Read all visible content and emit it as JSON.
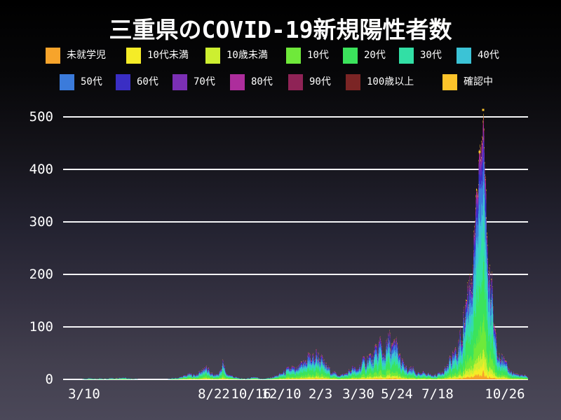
{
  "chart_data": {
    "type": "stacked-area",
    "title": "三重県のCOVID-19新規陽性者数",
    "legend_position": "top",
    "grid": "horizontal",
    "y_ticks": [
      0,
      100,
      200,
      300,
      400,
      500
    ],
    "ylim": [
      0,
      522
    ],
    "x_ticks": [
      {
        "label": "3/10",
        "dx": 30
      },
      {
        "label": "8/22",
        "dx": 215
      },
      {
        "label": "10/16",
        "dx": 268
      },
      {
        "label": "12/10",
        "dx": 311
      },
      {
        "label": "2/3",
        "dx": 367
      },
      {
        "label": "3/30",
        "dx": 421
      },
      {
        "label": "5/24",
        "dx": 476
      },
      {
        "label": "7/18",
        "dx": 534
      },
      {
        "label": "10/26",
        "dx": 630
      }
    ],
    "groups": [
      {
        "name": "未就学児",
        "color": "#F7A42B",
        "share": 0.02
      },
      {
        "name": "10代未満",
        "color": "#F5EC27",
        "share": 0.03
      },
      {
        "name": "10歳未満",
        "color": "#CDEF30",
        "share": 0.05
      },
      {
        "name": "10代",
        "color": "#6FE93A",
        "share": 0.11
      },
      {
        "name": "20代",
        "color": "#3BE35C",
        "share": 0.22
      },
      {
        "name": "30代",
        "color": "#32DFA5",
        "share": 0.16
      },
      {
        "name": "40代",
        "color": "#3BC3D6",
        "share": 0.14
      },
      {
        "name": "50代",
        "color": "#3B7BDB",
        "share": 0.12
      },
      {
        "name": "60代",
        "color": "#3A2EC4",
        "share": 0.07
      },
      {
        "name": "70代",
        "color": "#7B2FB4",
        "share": 0.04
      },
      {
        "name": "80代",
        "color": "#AD2D9C",
        "share": 0.025
      },
      {
        "name": "90代",
        "color": "#8F2356",
        "share": 0.012
      },
      {
        "name": "100歳以上",
        "color": "#7B2525",
        "share": 0.003
      },
      {
        "name": "確認中",
        "color": "#FBC32A",
        "share": 0.01
      }
    ],
    "totals": [
      [
        0,
        0
      ],
      [
        24,
        0
      ],
      [
        30,
        1
      ],
      [
        38,
        2
      ],
      [
        46,
        1
      ],
      [
        52,
        2
      ],
      [
        60,
        1
      ],
      [
        68,
        3
      ],
      [
        76,
        2
      ],
      [
        84,
        4
      ],
      [
        92,
        2
      ],
      [
        100,
        1
      ],
      [
        110,
        0
      ],
      [
        148,
        0
      ],
      [
        156,
        2
      ],
      [
        164,
        3
      ],
      [
        172,
        6
      ],
      [
        180,
        10
      ],
      [
        188,
        8
      ],
      [
        196,
        14
      ],
      [
        202,
        24
      ],
      [
        208,
        16
      ],
      [
        214,
        8
      ],
      [
        222,
        10
      ],
      [
        228,
        32
      ],
      [
        232,
        12
      ],
      [
        238,
        8
      ],
      [
        246,
        4
      ],
      [
        252,
        2
      ],
      [
        258,
        1
      ],
      [
        264,
        2
      ],
      [
        272,
        5
      ],
      [
        278,
        3
      ],
      [
        284,
        1
      ],
      [
        290,
        2
      ],
      [
        296,
        3
      ],
      [
        302,
        6
      ],
      [
        308,
        9
      ],
      [
        314,
        13
      ],
      [
        320,
        18
      ],
      [
        326,
        22
      ],
      [
        332,
        17
      ],
      [
        338,
        24
      ],
      [
        344,
        32
      ],
      [
        350,
        46
      ],
      [
        356,
        38
      ],
      [
        362,
        50
      ],
      [
        366,
        42
      ],
      [
        372,
        30
      ],
      [
        378,
        22
      ],
      [
        384,
        14
      ],
      [
        390,
        10
      ],
      [
        396,
        8
      ],
      [
        402,
        10
      ],
      [
        408,
        15
      ],
      [
        414,
        22
      ],
      [
        418,
        16
      ],
      [
        424,
        28
      ],
      [
        430,
        35
      ],
      [
        436,
        44
      ],
      [
        442,
        38
      ],
      [
        448,
        58
      ],
      [
        452,
        70
      ],
      [
        456,
        48
      ],
      [
        462,
        62
      ],
      [
        466,
        78
      ],
      [
        470,
        56
      ],
      [
        476,
        66
      ],
      [
        480,
        42
      ],
      [
        486,
        26
      ],
      [
        492,
        16
      ],
      [
        498,
        21
      ],
      [
        504,
        12
      ],
      [
        510,
        9
      ],
      [
        516,
        14
      ],
      [
        522,
        10
      ],
      [
        528,
        7
      ],
      [
        534,
        10
      ],
      [
        540,
        16
      ],
      [
        546,
        22
      ],
      [
        552,
        34
      ],
      [
        556,
        50
      ],
      [
        560,
        44
      ],
      [
        565,
        70
      ],
      [
        570,
        100
      ],
      [
        575,
        150
      ],
      [
        580,
        190
      ],
      [
        585,
        250
      ],
      [
        590,
        330
      ],
      [
        594,
        430
      ],
      [
        596,
        370
      ],
      [
        599,
        510
      ],
      [
        601,
        430
      ],
      [
        604,
        300
      ],
      [
        607,
        220
      ],
      [
        610,
        170
      ],
      [
        614,
        120
      ],
      [
        618,
        80
      ],
      [
        622,
        55
      ],
      [
        626,
        40
      ],
      [
        632,
        25
      ],
      [
        640,
        14
      ],
      [
        648,
        9
      ],
      [
        656,
        7
      ],
      [
        663,
        5
      ]
    ],
    "peak_markers": [
      {
        "dx": 599,
        "value": 510
      },
      {
        "dx": 594,
        "value": 430
      }
    ]
  }
}
